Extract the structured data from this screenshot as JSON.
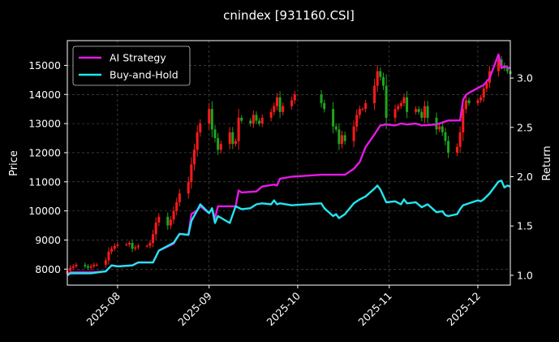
{
  "chart_data": {
    "type": "candlestick+line",
    "title": "cnindex [931160.CSI]",
    "ylabel_left": "Price",
    "ylabel_right": "Return",
    "ylim_left": [
      7450,
      15850
    ],
    "ylim_right": [
      0.9,
      3.38
    ],
    "xlim": [
      "2025-07-15",
      "2025-12-12"
    ],
    "left_ticks": [
      8000,
      9000,
      10000,
      11000,
      12000,
      13000,
      14000,
      15000
    ],
    "right_ticks": [
      1.0,
      1.5,
      2.0,
      2.5,
      3.0
    ],
    "x_ticks": [
      {
        "date": "2025-08-01",
        "label": "2025-08"
      },
      {
        "date": "2025-09-01",
        "label": "2025-09"
      },
      {
        "date": "2025-10-01",
        "label": "2025-10"
      },
      {
        "date": "2025-11-01",
        "label": "2025-11"
      },
      {
        "date": "2025-12-01",
        "label": "2025-12"
      }
    ],
    "grid": true,
    "legend_position": "top-left",
    "candle_colors": {
      "up": "#ff1a1a",
      "down": "#1fa51f"
    },
    "candles_close": [
      [
        "2025-07-15",
        7950
      ],
      [
        "2025-07-16",
        8050
      ],
      [
        "2025-07-17",
        8100
      ],
      [
        "2025-07-18",
        8150
      ],
      [
        "2025-07-21",
        8100
      ],
      [
        "2025-07-22",
        8050
      ],
      [
        "2025-07-23",
        8100
      ],
      [
        "2025-07-24",
        8150
      ],
      [
        "2025-07-25",
        8150
      ],
      [
        "2025-07-28",
        8300
      ],
      [
        "2025-07-29",
        8600
      ],
      [
        "2025-07-30",
        8700
      ],
      [
        "2025-07-31",
        8800
      ],
      [
        "2025-08-01",
        8850
      ],
      [
        "2025-08-04",
        8850
      ],
      [
        "2025-08-05",
        8900
      ],
      [
        "2025-08-06",
        8700
      ],
      [
        "2025-08-07",
        8750
      ],
      [
        "2025-08-08",
        8800
      ],
      [
        "2025-08-11",
        8800
      ],
      [
        "2025-08-12",
        8900
      ],
      [
        "2025-08-13",
        9200
      ],
      [
        "2025-08-14",
        9600
      ],
      [
        "2025-08-15",
        9800
      ],
      [
        "2025-08-18",
        9500
      ],
      [
        "2025-08-19",
        9700
      ],
      [
        "2025-08-20",
        10000
      ],
      [
        "2025-08-21",
        10300
      ],
      [
        "2025-08-22",
        10600
      ],
      [
        "2025-08-25",
        11000
      ],
      [
        "2025-08-26",
        11600
      ],
      [
        "2025-08-27",
        12100
      ],
      [
        "2025-08-28",
        12700
      ],
      [
        "2025-08-29",
        13000
      ],
      [
        "2025-09-01",
        13500
      ],
      [
        "2025-09-02",
        12800
      ],
      [
        "2025-09-03",
        12500
      ],
      [
        "2025-09-04",
        12100
      ],
      [
        "2025-09-05",
        12300
      ],
      [
        "2025-09-08",
        12700
      ],
      [
        "2025-09-09",
        12300
      ],
      [
        "2025-09-10",
        12400
      ],
      [
        "2025-09-11",
        13200
      ],
      [
        "2025-09-12",
        13100
      ],
      [
        "2025-09-15",
        13000
      ],
      [
        "2025-09-16",
        13300
      ],
      [
        "2025-09-17",
        13100
      ],
      [
        "2025-09-18",
        13000
      ],
      [
        "2025-09-19",
        13200
      ],
      [
        "2025-09-22",
        13400
      ],
      [
        "2025-09-23",
        13600
      ],
      [
        "2025-09-24",
        13900
      ],
      [
        "2025-09-25",
        13400
      ],
      [
        "2025-09-26",
        13600
      ],
      [
        "2025-09-29",
        13800
      ],
      [
        "2025-09-30",
        14000
      ],
      [
        "2025-10-09",
        13700
      ],
      [
        "2025-10-10",
        13500
      ],
      [
        "2025-10-13",
        12900
      ],
      [
        "2025-10-14",
        12800
      ],
      [
        "2025-10-15",
        12300
      ],
      [
        "2025-10-16",
        12600
      ],
      [
        "2025-10-17",
        12400
      ],
      [
        "2025-10-20",
        12900
      ],
      [
        "2025-10-21",
        13300
      ],
      [
        "2025-10-22",
        13500
      ],
      [
        "2025-10-23",
        13500
      ],
      [
        "2025-10-24",
        13700
      ],
      [
        "2025-10-27",
        14300
      ],
      [
        "2025-10-28",
        14800
      ],
      [
        "2025-10-29",
        14600
      ],
      [
        "2025-10-30",
        14300
      ],
      [
        "2025-10-31",
        13200
      ],
      [
        "2025-11-03",
        13500
      ],
      [
        "2025-11-04",
        13600
      ],
      [
        "2025-11-05",
        13700
      ],
      [
        "2025-11-06",
        13900
      ],
      [
        "2025-11-07",
        13400
      ],
      [
        "2025-11-10",
        13500
      ],
      [
        "2025-11-11",
        13400
      ],
      [
        "2025-11-12",
        13200
      ],
      [
        "2025-11-13",
        13600
      ],
      [
        "2025-11-14",
        13200
      ],
      [
        "2025-11-17",
        12800
      ],
      [
        "2025-11-18",
        12900
      ],
      [
        "2025-11-19",
        12700
      ],
      [
        "2025-11-20",
        12400
      ],
      [
        "2025-11-21",
        12000
      ],
      [
        "2025-11-24",
        12200
      ],
      [
        "2025-11-25",
        12700
      ],
      [
        "2025-11-26",
        13500
      ],
      [
        "2025-11-27",
        13800
      ],
      [
        "2025-11-28",
        13700
      ],
      [
        "2025-12-01",
        13800
      ],
      [
        "2025-12-02",
        13900
      ],
      [
        "2025-12-03",
        14200
      ],
      [
        "2025-12-04",
        14400
      ],
      [
        "2025-12-05",
        14800
      ],
      [
        "2025-12-08",
        15200
      ],
      [
        "2025-12-09",
        15000
      ],
      [
        "2025-12-10",
        14900
      ],
      [
        "2025-12-11",
        14800
      ],
      [
        "2025-12-12",
        14700
      ]
    ],
    "series": [
      {
        "name": "AI Strategy",
        "color": "#e619e6",
        "axis": "right",
        "points": [
          [
            "2025-07-15",
            1.0
          ],
          [
            "2025-07-16",
            1.03
          ],
          [
            "2025-07-23",
            1.03
          ],
          [
            "2025-07-28",
            1.04
          ],
          [
            "2025-07-30",
            1.1
          ],
          [
            "2025-08-01",
            1.09
          ],
          [
            "2025-08-06",
            1.1
          ],
          [
            "2025-08-08",
            1.13
          ],
          [
            "2025-08-13",
            1.13
          ],
          [
            "2025-08-15",
            1.25
          ],
          [
            "2025-08-20",
            1.32
          ],
          [
            "2025-08-22",
            1.42
          ],
          [
            "2025-08-25",
            1.41
          ],
          [
            "2025-08-26",
            1.62
          ],
          [
            "2025-08-28",
            1.66
          ],
          [
            "2025-08-29",
            1.7
          ],
          [
            "2025-09-01",
            1.63
          ],
          [
            "2025-09-02",
            1.67
          ],
          [
            "2025-09-03",
            1.58
          ],
          [
            "2025-09-04",
            1.7
          ],
          [
            "2025-09-10",
            1.7
          ],
          [
            "2025-09-11",
            1.86
          ],
          [
            "2025-09-12",
            1.84
          ],
          [
            "2025-09-17",
            1.85
          ],
          [
            "2025-09-19",
            1.9
          ],
          [
            "2025-09-23",
            1.92
          ],
          [
            "2025-09-24",
            1.91
          ],
          [
            "2025-09-25",
            1.98
          ],
          [
            "2025-09-29",
            2.0
          ],
          [
            "2025-10-09",
            2.02
          ],
          [
            "2025-10-17",
            2.02
          ],
          [
            "2025-10-20",
            2.08
          ],
          [
            "2025-10-22",
            2.15
          ],
          [
            "2025-10-24",
            2.3
          ],
          [
            "2025-10-27",
            2.43
          ],
          [
            "2025-10-29",
            2.52
          ],
          [
            "2025-10-31",
            2.53
          ],
          [
            "2025-11-03",
            2.52
          ],
          [
            "2025-11-05",
            2.54
          ],
          [
            "2025-11-07",
            2.53
          ],
          [
            "2025-11-10",
            2.54
          ],
          [
            "2025-11-12",
            2.52
          ],
          [
            "2025-11-17",
            2.53
          ],
          [
            "2025-11-19",
            2.55
          ],
          [
            "2025-11-21",
            2.57
          ],
          [
            "2025-11-25",
            2.57
          ],
          [
            "2025-11-26",
            2.78
          ],
          [
            "2025-11-27",
            2.83
          ],
          [
            "2025-11-28",
            2.85
          ],
          [
            "2025-12-01",
            2.9
          ],
          [
            "2025-12-03",
            2.93
          ],
          [
            "2025-12-05",
            3.0
          ],
          [
            "2025-12-08",
            3.24
          ],
          [
            "2025-12-09",
            3.1
          ],
          [
            "2025-12-10",
            3.12
          ],
          [
            "2025-12-12",
            3.1
          ]
        ]
      },
      {
        "name": "Buy-and-Hold",
        "color": "#22e5f0",
        "axis": "right",
        "points": [
          [
            "2025-07-15",
            1.0
          ],
          [
            "2025-07-16",
            1.02
          ],
          [
            "2025-07-23",
            1.02
          ],
          [
            "2025-07-28",
            1.04
          ],
          [
            "2025-07-30",
            1.1
          ],
          [
            "2025-08-01",
            1.09
          ],
          [
            "2025-08-06",
            1.1
          ],
          [
            "2025-08-08",
            1.13
          ],
          [
            "2025-08-13",
            1.13
          ],
          [
            "2025-08-15",
            1.25
          ],
          [
            "2025-08-20",
            1.33
          ],
          [
            "2025-08-22",
            1.42
          ],
          [
            "2025-08-25",
            1.41
          ],
          [
            "2025-08-26",
            1.55
          ],
          [
            "2025-08-28",
            1.66
          ],
          [
            "2025-08-29",
            1.72
          ],
          [
            "2025-09-01",
            1.63
          ],
          [
            "2025-09-02",
            1.68
          ],
          [
            "2025-09-03",
            1.53
          ],
          [
            "2025-09-04",
            1.6
          ],
          [
            "2025-09-08",
            1.53
          ],
          [
            "2025-09-10",
            1.7
          ],
          [
            "2025-09-12",
            1.67
          ],
          [
            "2025-09-15",
            1.68
          ],
          [
            "2025-09-17",
            1.72
          ],
          [
            "2025-09-19",
            1.73
          ],
          [
            "2025-09-22",
            1.72
          ],
          [
            "2025-09-23",
            1.76
          ],
          [
            "2025-09-24",
            1.72
          ],
          [
            "2025-09-25",
            1.73
          ],
          [
            "2025-09-29",
            1.71
          ],
          [
            "2025-10-09",
            1.73
          ],
          [
            "2025-10-10",
            1.68
          ],
          [
            "2025-10-13",
            1.6
          ],
          [
            "2025-10-14",
            1.62
          ],
          [
            "2025-10-15",
            1.58
          ],
          [
            "2025-10-17",
            1.62
          ],
          [
            "2025-10-20",
            1.73
          ],
          [
            "2025-10-22",
            1.77
          ],
          [
            "2025-10-24",
            1.8
          ],
          [
            "2025-10-27",
            1.88
          ],
          [
            "2025-10-28",
            1.91
          ],
          [
            "2025-10-29",
            1.87
          ],
          [
            "2025-10-31",
            1.74
          ],
          [
            "2025-11-03",
            1.75
          ],
          [
            "2025-11-05",
            1.72
          ],
          [
            "2025-11-06",
            1.77
          ],
          [
            "2025-11-07",
            1.73
          ],
          [
            "2025-11-10",
            1.74
          ],
          [
            "2025-11-12",
            1.69
          ],
          [
            "2025-11-14",
            1.72
          ],
          [
            "2025-11-17",
            1.64
          ],
          [
            "2025-11-19",
            1.65
          ],
          [
            "2025-11-20",
            1.61
          ],
          [
            "2025-11-21",
            1.6
          ],
          [
            "2025-11-24",
            1.62
          ],
          [
            "2025-11-25",
            1.67
          ],
          [
            "2025-11-26",
            1.71
          ],
          [
            "2025-11-27",
            1.72
          ],
          [
            "2025-12-01",
            1.76
          ],
          [
            "2025-12-02",
            1.75
          ],
          [
            "2025-12-03",
            1.77
          ],
          [
            "2025-12-05",
            1.83
          ],
          [
            "2025-12-08",
            1.95
          ],
          [
            "2025-12-09",
            1.96
          ],
          [
            "2025-12-10",
            1.89
          ],
          [
            "2025-12-11",
            1.91
          ],
          [
            "2025-12-12",
            1.9
          ]
        ]
      }
    ]
  }
}
